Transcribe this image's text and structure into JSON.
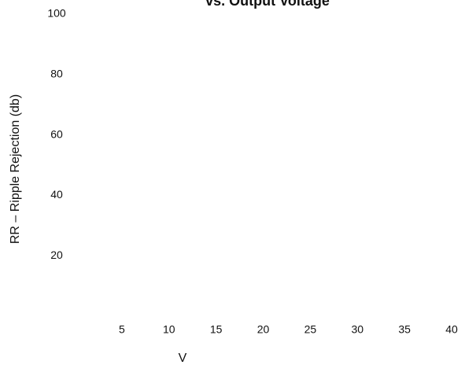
{
  "chart_data": {
    "type": "line",
    "title": "vs. Output Voltage",
    "x_label": "V",
    "y_label": "RR – Ripple Rejection (db)",
    "xlim": [
      0,
      40
    ],
    "xticks": [
      5,
      10,
      15,
      20,
      25,
      30,
      35,
      40
    ],
    "ylim": [
      0,
      100
    ],
    "yticks": [
      20,
      40,
      60,
      80,
      100
    ],
    "series": []
  }
}
